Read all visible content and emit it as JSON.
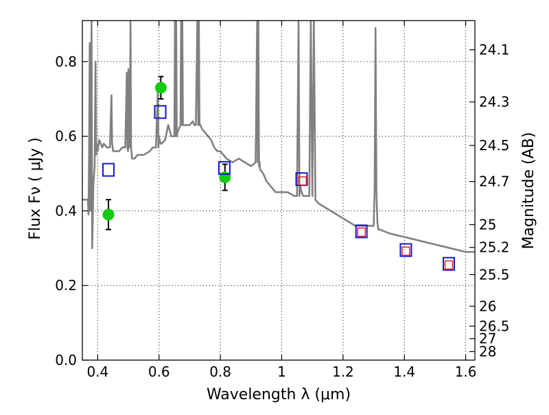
{
  "chart_data": {
    "type": "scatter",
    "title": "",
    "xlabel": "Wavelength  λ (μm)",
    "ylabel": "Flux  Fν  ( μJy )",
    "ylabel_right": "Magnitude (AB)",
    "xlim": [
      0.35,
      1.63
    ],
    "ylim": [
      0.0,
      0.91
    ],
    "grid": true,
    "x_ticks": [
      0.4,
      0.6,
      0.8,
      1.0,
      1.2,
      1.4,
      1.6
    ],
    "x_tick_labels": [
      "0.4",
      "0.6",
      "0.8",
      "1",
      "1.2",
      "1.4",
      "1.6"
    ],
    "y_ticks": [
      0.0,
      0.2,
      0.4,
      0.6,
      0.8
    ],
    "y_tick_labels": [
      "0.0",
      "0.2",
      "0.4",
      "0.6",
      "0.8"
    ],
    "right_ticks": [
      {
        "label": "24.1",
        "mag": 24.1
      },
      {
        "label": "24.3",
        "mag": 24.3
      },
      {
        "label": "24.5",
        "mag": 24.5
      },
      {
        "label": "24.7",
        "mag": 24.7
      },
      {
        "label": "25",
        "mag": 25.0
      },
      {
        "label": "25.2",
        "mag": 25.2
      },
      {
        "label": "25.5",
        "mag": 25.5
      },
      {
        "label": "26",
        "mag": 26.0
      },
      {
        "label": "26.5",
        "mag": 26.5
      },
      {
        "label": "27",
        "mag": 27.0
      },
      {
        "label": "28",
        "mag": 28.0
      }
    ],
    "series": [
      {
        "kind": "line",
        "color": "#808080",
        "x": [
          0.35,
          0.368,
          0.37,
          0.372,
          0.374,
          0.376,
          0.378,
          0.38,
          0.382,
          0.384,
          0.386,
          0.39,
          0.393,
          0.395,
          0.397,
          0.4,
          0.405,
          0.41,
          0.415,
          0.42,
          0.43,
          0.44,
          0.445,
          0.447,
          0.449,
          0.45,
          0.46,
          0.47,
          0.48,
          0.49,
          0.495,
          0.497,
          0.499,
          0.5,
          0.505,
          0.507,
          0.509,
          0.512,
          0.52,
          0.53,
          0.55,
          0.57,
          0.58,
          0.59,
          0.596,
          0.598,
          0.6,
          0.602,
          0.605,
          0.608,
          0.62,
          0.63,
          0.64,
          0.65,
          0.652,
          0.654,
          0.656,
          0.658,
          0.66,
          0.665,
          0.67,
          0.672,
          0.674,
          0.676,
          0.678,
          0.68,
          0.69,
          0.7,
          0.71,
          0.715,
          0.72,
          0.725,
          0.728,
          0.73,
          0.732,
          0.735,
          0.74,
          0.75,
          0.76,
          0.77,
          0.78,
          0.79,
          0.8,
          0.82,
          0.84,
          0.86,
          0.88,
          0.9,
          0.915,
          0.92,
          0.922,
          0.924,
          0.926,
          0.928,
          0.93,
          0.94,
          0.95,
          0.96,
          0.97,
          0.98,
          0.99,
          1.0,
          1.02,
          1.04,
          1.05,
          1.055,
          1.058,
          1.06,
          1.062,
          1.065,
          1.07,
          1.08,
          1.09,
          1.095,
          1.1,
          1.105,
          1.11,
          1.12,
          1.14,
          1.16,
          1.18,
          1.2,
          1.22,
          1.24,
          1.26,
          1.28,
          1.29,
          1.3,
          1.303,
          1.306,
          1.309,
          1.312,
          1.315,
          1.32,
          1.35,
          1.4,
          1.45,
          1.5,
          1.55,
          1.6,
          1.63
        ],
        "y": [
          0.43,
          0.43,
          0.39,
          0.55,
          0.85,
          0.4,
          0.52,
          0.91,
          0.3,
          0.38,
          0.47,
          0.52,
          0.8,
          0.55,
          0.58,
          0.56,
          0.59,
          0.58,
          0.57,
          0.58,
          0.57,
          0.57,
          0.71,
          0.58,
          0.57,
          0.56,
          0.56,
          0.56,
          0.57,
          0.57,
          0.77,
          0.57,
          0.56,
          0.78,
          0.57,
          0.91,
          0.57,
          0.54,
          0.54,
          0.55,
          0.55,
          0.56,
          0.57,
          0.57,
          0.72,
          0.57,
          0.6,
          0.59,
          0.58,
          0.58,
          0.59,
          0.63,
          0.6,
          0.6,
          0.91,
          0.6,
          0.91,
          0.6,
          0.61,
          0.62,
          0.63,
          0.91,
          0.63,
          0.91,
          0.63,
          0.63,
          0.63,
          0.63,
          0.64,
          0.63,
          0.63,
          0.91,
          0.63,
          0.91,
          0.63,
          0.63,
          0.62,
          0.61,
          0.6,
          0.59,
          0.57,
          0.56,
          0.56,
          0.54,
          0.53,
          0.54,
          0.53,
          0.52,
          0.53,
          0.91,
          0.53,
          0.91,
          0.52,
          0.53,
          0.51,
          0.5,
          0.48,
          0.47,
          0.46,
          0.45,
          0.45,
          0.45,
          0.45,
          0.44,
          0.44,
          0.91,
          0.44,
          0.47,
          0.46,
          0.45,
          0.44,
          0.44,
          0.44,
          0.91,
          0.44,
          0.91,
          0.43,
          0.42,
          0.41,
          0.4,
          0.39,
          0.38,
          0.37,
          0.36,
          0.36,
          0.36,
          0.36,
          0.36,
          0.45,
          0.89,
          0.45,
          0.37,
          0.35,
          0.35,
          0.34,
          0.33,
          0.32,
          0.31,
          0.3,
          0.29,
          0.29
        ]
      },
      {
        "kind": "points",
        "color": "#11cc11",
        "marker": "circle",
        "x": [
          0.435,
          0.606,
          0.815
        ],
        "y": [
          0.39,
          0.73,
          0.49
        ],
        "yerr": [
          0.04,
          0.03,
          0.035
        ]
      },
      {
        "kind": "points",
        "color": "#1515cc",
        "marker": "open-square",
        "x": [
          0.435,
          0.604,
          0.813,
          1.065,
          1.26,
          1.405,
          1.545
        ],
        "y": [
          0.51,
          0.665,
          0.515,
          0.485,
          0.345,
          0.295,
          0.258
        ]
      },
      {
        "kind": "points",
        "color": "#dd2222",
        "marker": "small-open-square",
        "x": [
          1.068,
          1.26,
          1.405,
          1.545
        ],
        "y": [
          0.48,
          0.343,
          0.292,
          0.255
        ]
      }
    ]
  }
}
